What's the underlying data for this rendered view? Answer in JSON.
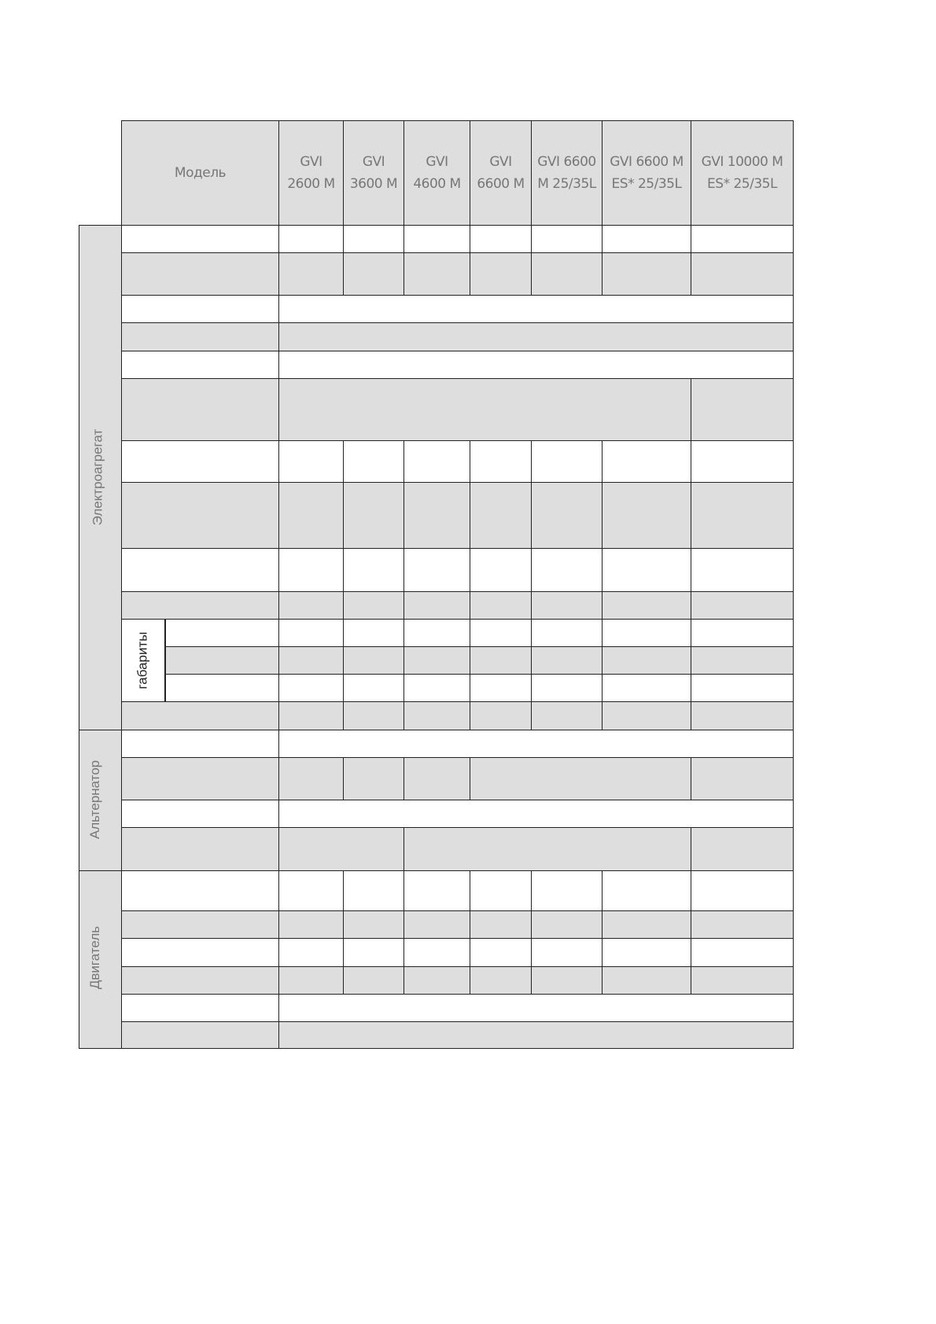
{
  "table": {
    "header": {
      "model_label": "Модель",
      "models": [
        "GVI 2600 M",
        "GVI 3600 M",
        "GVI 4600 M",
        "GVI 6600 M",
        "GVI 6600 M 25/35L",
        "GVI 6600 M ES* 25/35L",
        "GVI 10000 M ES* 25/35L"
      ],
      "model_lines": [
        [
          "GVI",
          "2600 M"
        ],
        [
          "GVI",
          "3600 M"
        ],
        [
          "GVI",
          "4600 M"
        ],
        [
          "GVI",
          "6600 M"
        ],
        [
          "GVI 6600",
          "M 25/35L"
        ],
        [
          "GVI 6600 M",
          "ES* 25/35L"
        ],
        [
          "GVI 10000 M",
          "ES* 25/35L"
        ]
      ]
    },
    "sections": [
      "Электроагрегат",
      "Альтернатор",
      "Двигатель"
    ],
    "sublabel": "габариты"
  },
  "colors": {
    "shade": "#dedede",
    "border": "#222222",
    "text": "#777777"
  }
}
